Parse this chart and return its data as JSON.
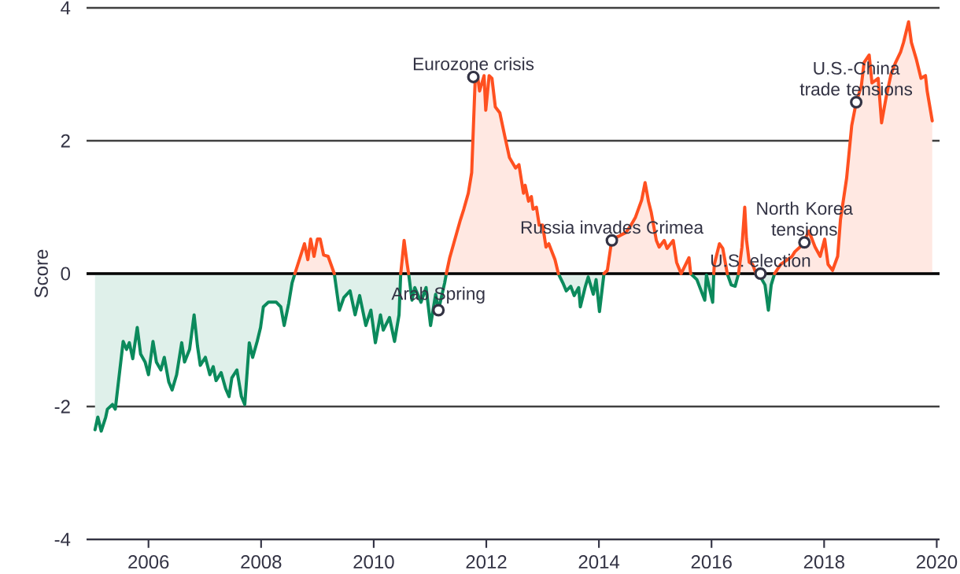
{
  "chart_data": {
    "type": "area",
    "ylabel": "Score",
    "xlim": [
      2004.9,
      2020.05
    ],
    "ylim": [
      -4,
      4
    ],
    "xticks": [
      2006,
      2008,
      2010,
      2012,
      2014,
      2016,
      2018,
      2020
    ],
    "yticks": [
      -4,
      -2,
      0,
      2,
      4
    ],
    "grid": "y",
    "ref_lines": [
      {
        "axis": "y",
        "value": 0,
        "color": "#000000"
      }
    ],
    "series": [
      {
        "color": "#0b8a5c",
        "x": [
          2005.05,
          2005.1,
          2005.16,
          2005.24,
          2005.27,
          2005.36,
          2005.41,
          2005.55,
          2005.61,
          2005.66,
          2005.72,
          2005.8,
          2005.86,
          2005.94,
          2006.0,
          2006.08,
          2006.14,
          2006.22,
          2006.28,
          2006.36,
          2006.42,
          2006.5,
          2006.59,
          2006.64,
          2006.73,
          2006.81,
          2006.87,
          2006.92,
          2007.01,
          2007.09,
          2007.15,
          2007.2,
          2007.29,
          2007.37,
          2007.43,
          2007.48,
          2007.57,
          2007.65,
          2007.71,
          2007.79,
          2007.85,
          2007.93,
          2007.99,
          2008.04,
          2008.13,
          2008.27,
          2008.35,
          2008.41,
          2008.49,
          2008.55,
          2008.6,
          2008.95,
          2009.3,
          2009.39,
          2009.47,
          2009.58,
          2009.67,
          2009.75,
          2009.86,
          2009.95,
          2010.03,
          2010.12,
          2010.17,
          2010.28,
          2010.37,
          2010.45,
          2010.48,
          2010.55,
          2010.62,
          2010.68,
          2010.73,
          2010.84,
          2010.93,
          2011.01,
          2011.1,
          2011.15,
          2011.26,
          2011.29,
          2012.3,
          2013.28,
          2013.36,
          2013.42,
          2013.5,
          2013.56,
          2013.64,
          2013.67,
          2013.76,
          2013.81,
          2013.9,
          2013.95,
          2014.01,
          2014.09,
          2014.8,
          2015.63,
          2015.74,
          2015.88,
          2015.91,
          2016.02,
          2016.04,
          2016.16,
          2016.28,
          2016.35,
          2016.42,
          2016.48,
          2016.63,
          2016.79,
          2016.87,
          2016.95,
          2017.01,
          2017.06,
          2017.12
        ],
        "values": [
          -2.35,
          -2.16,
          -2.37,
          -2.16,
          -2.04,
          -1.97,
          -2.04,
          -1.02,
          -1.14,
          -1.04,
          -1.28,
          -0.81,
          -1.21,
          -1.33,
          -1.52,
          -1.02,
          -1.33,
          -1.45,
          -1.26,
          -1.63,
          -1.75,
          -1.52,
          -1.04,
          -1.33,
          -1.14,
          -0.62,
          -1.09,
          -1.38,
          -1.26,
          -1.52,
          -1.4,
          -1.61,
          -1.49,
          -1.73,
          -1.85,
          -1.57,
          -1.45,
          -1.85,
          -1.97,
          -1.04,
          -1.26,
          -1.02,
          -0.81,
          -0.5,
          -0.43,
          -0.43,
          -0.5,
          -0.78,
          -0.45,
          -0.14,
          0,
          null,
          0,
          -0.55,
          -0.36,
          -0.26,
          -0.62,
          -0.33,
          -0.78,
          -0.55,
          -1.04,
          -0.62,
          -0.85,
          -0.66,
          -1.02,
          -0.62,
          0,
          null,
          0,
          -0.4,
          -0.21,
          -0.43,
          -0.21,
          -0.78,
          -0.31,
          -0.55,
          -0.14,
          0,
          null,
          0,
          -0.14,
          -0.26,
          -0.19,
          -0.33,
          -0.21,
          -0.5,
          -0.19,
          -0.05,
          -0.31,
          -0.09,
          -0.57,
          0,
          null,
          0,
          -0.09,
          -0.4,
          -0.02,
          -0.43,
          0,
          null,
          0,
          -0.17,
          -0.19,
          0,
          null,
          0,
          -0.05,
          -0.17,
          -0.55,
          -0.17,
          0
        ]
      },
      {
        "color": "#ff5020",
        "x": [
          2008.6,
          2008.77,
          2008.83,
          2008.88,
          2008.94,
          2009.0,
          2009.05,
          2009.11,
          2009.19,
          2009.3,
          2009.9,
          2010.48,
          2010.54,
          2010.59,
          2010.62,
          2010.95,
          2011.29,
          2011.35,
          2011.54,
          2011.6,
          2011.68,
          2011.74,
          2011.8,
          2011.85,
          2011.88,
          2011.96,
          2011.99,
          2012.05,
          2012.1,
          2012.16,
          2012.24,
          2012.33,
          2012.41,
          2012.52,
          2012.58,
          2012.66,
          2012.69,
          2012.75,
          2012.8,
          2012.83,
          2012.89,
          2012.94,
          2013.0,
          2013.06,
          2013.11,
          2013.22,
          2013.28,
          2013.7,
          2014.09,
          2014.15,
          2014.23,
          2014.37,
          2014.48,
          2014.57,
          2014.65,
          2014.76,
          2014.82,
          2014.88,
          2014.93,
          2015.02,
          2015.07,
          2015.16,
          2015.21,
          2015.32,
          2015.38,
          2015.46,
          2015.6,
          2015.63,
          2015.8,
          2016.04,
          2016.05,
          2016.14,
          2016.2,
          2016.28,
          2016.38,
          2016.48,
          2016.54,
          2016.59,
          2016.62,
          2016.67,
          2016.73,
          2016.79,
          2016.95,
          2017.12,
          2017.23,
          2017.43,
          2017.48,
          2017.57,
          2017.65,
          2017.73,
          2017.84,
          2017.93,
          2018.01,
          2018.07,
          2018.15,
          2018.24,
          2018.29,
          2018.4,
          2018.49,
          2018.57,
          2018.66,
          2018.71,
          2018.8,
          2018.85,
          2018.96,
          2019.02,
          2019.1,
          2019.19,
          2019.27,
          2019.36,
          2019.41,
          2019.5,
          2019.55,
          2019.64,
          2019.72,
          2019.8,
          2019.83,
          2019.92
        ],
        "values": [
          0,
          0.45,
          0.21,
          0.52,
          0.26,
          0.52,
          0.52,
          0.28,
          0.26,
          0,
          null,
          0,
          0.5,
          0.17,
          0,
          null,
          0,
          0.24,
          0.81,
          0.97,
          1.21,
          1.52,
          2.87,
          2.94,
          2.75,
          2.98,
          2.46,
          2.98,
          2.94,
          2.51,
          2.42,
          2.06,
          1.75,
          1.59,
          1.64,
          1.21,
          1.33,
          1.09,
          1.16,
          0.97,
          1.0,
          0.73,
          0.73,
          0.4,
          0.45,
          0.21,
          0,
          null,
          0,
          0.05,
          0.52,
          0.57,
          0.62,
          0.73,
          0.85,
          1.11,
          1.37,
          1.09,
          0.92,
          0.5,
          0.4,
          0.5,
          0.38,
          0.5,
          0.17,
          0,
          0.24,
          0,
          null,
          0,
          0.14,
          0.45,
          0.38,
          0,
          null,
          0,
          0.4,
          1.0,
          0.52,
          0.17,
          0.14,
          0,
          null,
          0,
          0.14,
          0.26,
          0.33,
          0.4,
          0.5,
          0.64,
          0.4,
          0.26,
          0.52,
          0.14,
          0.05,
          0.26,
          0.81,
          1.44,
          2.23,
          2.58,
          2.82,
          3.18,
          3.29,
          2.87,
          2.94,
          2.27,
          2.65,
          3.01,
          3.18,
          3.34,
          3.48,
          3.79,
          3.48,
          3.22,
          2.94,
          2.98,
          2.75,
          2.3
        ]
      }
    ],
    "annotations": [
      {
        "text": "Eurozone crisis",
        "x": 2011.77,
        "y": 2.96
      },
      {
        "text": "Arab Spring",
        "x": 2011.15,
        "y": -0.55
      },
      {
        "text": "Russia invades Crimea",
        "x": 2014.23,
        "y": 0.5
      },
      {
        "text": "U.S. election",
        "x": 2016.87,
        "y": 0
      },
      {
        "text": "North Korea tensions",
        "x": 2017.65,
        "y": 0.47
      },
      {
        "text": "U.S.-China trade tensions",
        "x": 2018.57,
        "y": 2.58
      }
    ]
  }
}
